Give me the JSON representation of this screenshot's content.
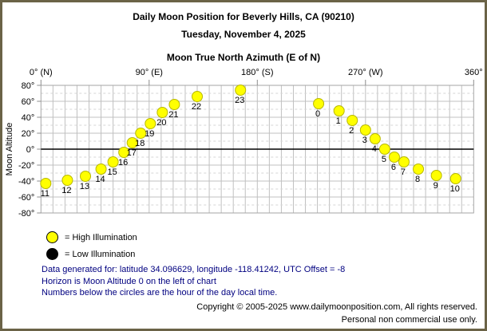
{
  "header": {
    "title_line1": "Daily Moon Position for Beverly Hills, CA (90210)",
    "title_line2": "Tuesday, November 4, 2025"
  },
  "chart_data": {
    "type": "scatter",
    "title": "Moon True North Azimuth (E of N)",
    "xlabel": "Moon True North Azimuth (E of N)",
    "ylabel": "Moon Altitude",
    "xlim": [
      0,
      360
    ],
    "ylim": [
      -80,
      80
    ],
    "grid": "on",
    "x_ticks": [
      {
        "value": 0,
        "label": "0° (N)"
      },
      {
        "value": 90,
        "label": "90° (E)"
      },
      {
        "value": 180,
        "label": "180° (S)"
      },
      {
        "value": 270,
        "label": "270° (W)"
      },
      {
        "value": 360,
        "label": "360°"
      }
    ],
    "y_ticks": [
      {
        "value": 80,
        "label": "80°"
      },
      {
        "value": 60,
        "label": "60°"
      },
      {
        "value": 40,
        "label": "40°"
      },
      {
        "value": 20,
        "label": "20°"
      },
      {
        "value": 0,
        "label": "0°"
      },
      {
        "value": -20,
        "label": "-20°"
      },
      {
        "value": -40,
        "label": "-40°"
      },
      {
        "value": -60,
        "label": "-60°"
      },
      {
        "value": -80,
        "label": "-80°"
      }
    ],
    "series": [
      {
        "name": "High Illumination",
        "color": "#FFFF00",
        "points": [
          {
            "hour": "11",
            "azimuth": 4,
            "altitude": -43
          },
          {
            "hour": "12",
            "azimuth": 22,
            "altitude": -39
          },
          {
            "hour": "13",
            "azimuth": 37,
            "altitude": -34
          },
          {
            "hour": "14",
            "azimuth": 50,
            "altitude": -25
          },
          {
            "hour": "15",
            "azimuth": 60,
            "altitude": -16
          },
          {
            "hour": "16",
            "azimuth": 69,
            "altitude": -4
          },
          {
            "hour": "17",
            "azimuth": 76,
            "altitude": 8
          },
          {
            "hour": "18",
            "azimuth": 83,
            "altitude": 20
          },
          {
            "hour": "19",
            "azimuth": 91,
            "altitude": 32
          },
          {
            "hour": "20",
            "azimuth": 101,
            "altitude": 46
          },
          {
            "hour": "21",
            "azimuth": 111,
            "altitude": 56
          },
          {
            "hour": "22",
            "azimuth": 130,
            "altitude": 66
          },
          {
            "hour": "23",
            "azimuth": 166,
            "altitude": 74
          },
          {
            "hour": "0",
            "azimuth": 231,
            "altitude": 57
          },
          {
            "hour": "1",
            "azimuth": 248,
            "altitude": 48
          },
          {
            "hour": "2",
            "azimuth": 259,
            "altitude": 36
          },
          {
            "hour": "3",
            "azimuth": 270,
            "altitude": 24
          },
          {
            "hour": "4",
            "azimuth": 278,
            "altitude": 13
          },
          {
            "hour": "5",
            "azimuth": 286,
            "altitude": 0
          },
          {
            "hour": "6",
            "azimuth": 294,
            "altitude": -10
          },
          {
            "hour": "7",
            "azimuth": 302,
            "altitude": -16
          },
          {
            "hour": "8",
            "azimuth": 314,
            "altitude": -25
          },
          {
            "hour": "9",
            "azimuth": 329,
            "altitude": -33
          },
          {
            "hour": "10",
            "azimuth": 345,
            "altitude": -37
          }
        ]
      }
    ]
  },
  "legend": {
    "items": [
      {
        "swatch_color": "#FFFF00",
        "label": "= High Illumination"
      },
      {
        "swatch_color": "#000000",
        "label": "= Low Illumination"
      }
    ]
  },
  "notes": [
    "Data generated for: latitude 34.096629, longitude -118.41242, UTC Offset = -8",
    "Horizon is Moon Altitude 0 on the left of chart",
    "Numbers below the circles are the hour of the day local time."
  ],
  "footer": {
    "line1": "Copyright © 2005-2025 www.dailymoonposition.com, All rights reserved.",
    "line2": "Personal non commercial use only."
  },
  "colors": {
    "background": "#FFFFFF",
    "frame_border": "#6B6347",
    "grid_solid": "#C0C0C0",
    "grid_dashed": "#D6D6D6",
    "plot_border": "#A6A6A6",
    "tick": "#8C8C8C",
    "horizon_line": "#000000",
    "point_stroke": "#B8B800",
    "notes_text": "#000080",
    "text": "#000000"
  }
}
